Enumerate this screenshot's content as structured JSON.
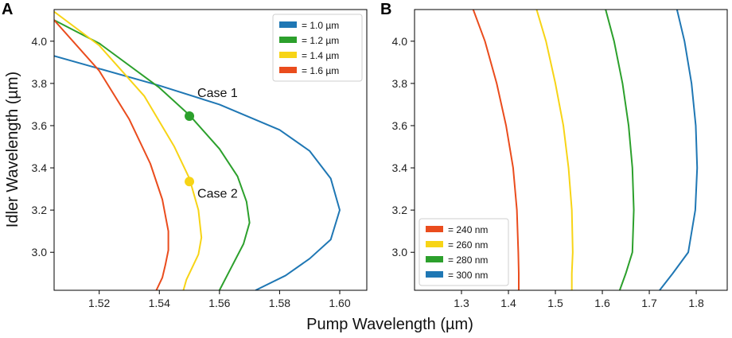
{
  "figure": {
    "xlabel": "Pump Wavelength (µm)",
    "ylabel": "Idler Wavelength (µm)"
  },
  "chart_data": [
    {
      "panel": "A",
      "type": "line",
      "xlim": [
        1.505,
        1.609
      ],
      "ylim": [
        2.82,
        4.15
      ],
      "xticks": [
        1.52,
        1.54,
        1.56,
        1.58,
        1.6
      ],
      "xtick_labels": [
        "1.52",
        "1.54",
        "1.56",
        "1.58",
        "1.60"
      ],
      "yticks": [
        3.0,
        3.2,
        3.4,
        3.6,
        3.8,
        4.0
      ],
      "ytick_labels": [
        "3.0",
        "3.2",
        "3.4",
        "3.6",
        "3.8",
        "4.0"
      ],
      "legend_position": "top-right",
      "series": [
        {
          "name": "= 1.0 µm",
          "color": "#1f77b4",
          "x": [
            1.505,
            1.52,
            1.54,
            1.56,
            1.58,
            1.59,
            1.597,
            1.6,
            1.597,
            1.59,
            1.582,
            1.572
          ],
          "y": [
            3.93,
            3.87,
            3.79,
            3.7,
            3.58,
            3.48,
            3.35,
            3.2,
            3.06,
            2.97,
            2.89,
            2.82
          ]
        },
        {
          "name": "= 1.2 µm",
          "color": "#2ca02c",
          "x": [
            1.505,
            1.52,
            1.54,
            1.55,
            1.56,
            1.566,
            1.569,
            1.57,
            1.568,
            1.564,
            1.56
          ],
          "y": [
            4.1,
            3.99,
            3.78,
            3.65,
            3.49,
            3.36,
            3.24,
            3.14,
            3.04,
            2.93,
            2.82
          ]
        },
        {
          "name": "= 1.4 µm",
          "color": "#f7d416",
          "x": [
            1.505,
            1.52,
            1.535,
            1.545,
            1.55,
            1.553,
            1.554,
            1.553,
            1.551,
            1.549,
            1.548
          ],
          "y": [
            4.14,
            3.98,
            3.74,
            3.5,
            3.35,
            3.2,
            3.07,
            2.99,
            2.93,
            2.87,
            2.82
          ]
        },
        {
          "name": "= 1.6 µm",
          "color": "#ea4c1d",
          "x": [
            1.505,
            1.52,
            1.53,
            1.537,
            1.541,
            1.543,
            1.543,
            1.542,
            1.541,
            1.539
          ],
          "y": [
            4.1,
            3.86,
            3.63,
            3.42,
            3.25,
            3.1,
            3.01,
            2.94,
            2.88,
            2.82
          ]
        }
      ],
      "markers": [
        {
          "label": "Case 1",
          "x": 1.55,
          "y": 3.645,
          "color": "#2ca02c"
        },
        {
          "label": "Case 2",
          "x": 1.55,
          "y": 3.335,
          "color": "#f7d416"
        }
      ]
    },
    {
      "panel": "B",
      "type": "line",
      "xlim": [
        1.2,
        1.866
      ],
      "ylim": [
        2.82,
        4.15
      ],
      "xticks": [
        1.3,
        1.4,
        1.5,
        1.6,
        1.7,
        1.8
      ],
      "xtick_labels": [
        "1.3",
        "1.4",
        "1.5",
        "1.6",
        "1.7",
        "1.8"
      ],
      "yticks": [
        3.0,
        3.2,
        3.4,
        3.6,
        3.8,
        4.0
      ],
      "ytick_labels": [
        "3.0",
        "3.2",
        "3.4",
        "3.6",
        "3.8",
        "4.0"
      ],
      "legend_position": "bottom-left",
      "series": [
        {
          "name": "= 240 nm",
          "color": "#ea4c1d",
          "x": [
            1.325,
            1.35,
            1.375,
            1.395,
            1.41,
            1.418,
            1.421,
            1.422,
            1.422
          ],
          "y": [
            4.15,
            4.0,
            3.8,
            3.6,
            3.4,
            3.2,
            3.0,
            2.9,
            2.82
          ]
        },
        {
          "name": "= 260 nm",
          "color": "#f7d416",
          "x": [
            1.46,
            1.48,
            1.5,
            1.517,
            1.528,
            1.535,
            1.537,
            1.535,
            1.535
          ],
          "y": [
            4.15,
            4.0,
            3.8,
            3.6,
            3.4,
            3.2,
            3.0,
            2.9,
            2.82
          ]
        },
        {
          "name": "= 280 nm",
          "color": "#2ca02c",
          "x": [
            1.607,
            1.625,
            1.643,
            1.656,
            1.664,
            1.667,
            1.664,
            1.65,
            1.637
          ],
          "y": [
            4.15,
            4.0,
            3.8,
            3.6,
            3.4,
            3.2,
            3.0,
            2.9,
            2.82
          ]
        },
        {
          "name": "= 300 nm",
          "color": "#1f77b4",
          "x": [
            1.759,
            1.775,
            1.79,
            1.799,
            1.802,
            1.798,
            1.783,
            1.75,
            1.722
          ],
          "y": [
            4.15,
            4.0,
            3.8,
            3.6,
            3.4,
            3.2,
            3.0,
            2.9,
            2.82
          ]
        }
      ]
    }
  ]
}
